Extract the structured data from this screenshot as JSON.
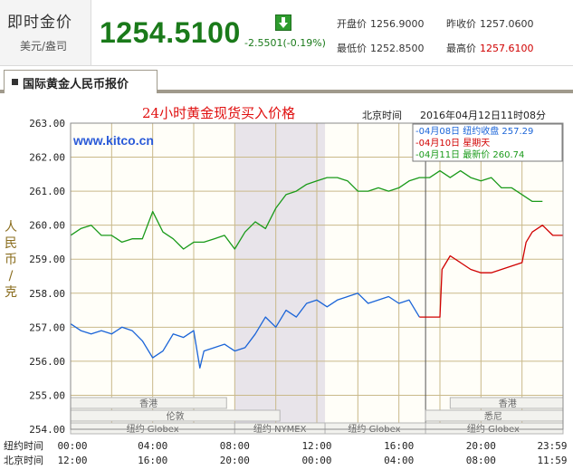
{
  "quote": {
    "label": "即时金价",
    "unit": "美元/盎司",
    "price": "1254.5100",
    "change": "-2.5501(-0.19%)",
    "open_label": "开盘价",
    "open_value": "1256.9000",
    "prev_close_label": "昨收价",
    "prev_close_value": "1257.0600",
    "low_label": "最低价",
    "low_value": "1252.8500",
    "high_label": "最高价",
    "high_value": "1257.6100",
    "change_color": "#1a7a1a",
    "high_color": "#d00000"
  },
  "section": {
    "tab_label": "国际黄金人民币报价"
  },
  "chart_data": {
    "type": "line",
    "title": "24小时黄金现货买入价格",
    "watermark": "www.kitco.cn",
    "timestamp_label": "北京时间",
    "timestamp": "2016年04月12日11时08分",
    "ylabel": [
      "人",
      "民",
      "币",
      "/",
      "克"
    ],
    "ylim": [
      254,
      263
    ],
    "yticks": [
      "263.00",
      "262.00",
      "261.00",
      "260.00",
      "259.00",
      "258.00",
      "257.00",
      "256.00",
      "255.00",
      "254.00"
    ],
    "xlim": [
      0,
      24
    ],
    "x_label_rows": [
      {
        "label": "纽约时间",
        "ticks": [
          "00:00",
          "04:00",
          "08:00",
          "12:00",
          "16:00",
          "20:00",
          "23:59"
        ]
      },
      {
        "label": "北京时间",
        "ticks": [
          "12:00",
          "16:00",
          "20:00",
          "00:00",
          "04:00",
          "08:00",
          "11:59"
        ]
      }
    ],
    "legend": [
      {
        "text": "-04月08日  纽约收盘 257.29",
        "color": "#1a64d8"
      },
      {
        "text": "-04月10日  星期天",
        "color": "#d00000"
      },
      {
        "text": "-04月11日  最新价 260.74",
        "color": "#1a9a1a"
      }
    ],
    "markets": [
      "香港",
      "伦敦",
      "纽约 Globex",
      "纽约 NYMEX",
      "纽约 Globex",
      "香港",
      "悉尼",
      "纽约 Globex"
    ],
    "series": [
      {
        "name": "04月08日",
        "color": "#1a64d8",
        "x": [
          0.0,
          0.5,
          1.0,
          1.5,
          2.0,
          2.5,
          3.0,
          3.5,
          4.0,
          4.5,
          5.0,
          5.5,
          6.0,
          6.3,
          6.5,
          7.0,
          7.5,
          8.0,
          8.5,
          9.0,
          9.5,
          10.0,
          10.5,
          11.0,
          11.5,
          12.0,
          12.5,
          13.0,
          13.5,
          14.0,
          14.5,
          15.0,
          15.5,
          16.0,
          16.5,
          17.0
        ],
        "y": [
          257.1,
          256.9,
          256.8,
          256.9,
          256.8,
          257.0,
          256.9,
          256.6,
          256.1,
          256.3,
          256.8,
          256.7,
          256.9,
          255.8,
          256.3,
          256.4,
          256.5,
          256.3,
          256.4,
          256.8,
          257.3,
          257.0,
          257.5,
          257.3,
          257.7,
          257.8,
          257.6,
          257.8,
          257.9,
          258.0,
          257.7,
          257.8,
          257.9,
          257.7,
          257.8,
          257.3
        ]
      },
      {
        "name": "04月10日",
        "color": "#d00000",
        "x": [
          17.0,
          18.0,
          18.1,
          18.5,
          19.0,
          19.5,
          20.0,
          20.5,
          21.0,
          21.5,
          22.0,
          22.2,
          22.5,
          23.0,
          23.5,
          24.0
        ],
        "y": [
          257.3,
          257.3,
          258.7,
          259.1,
          258.9,
          258.7,
          258.6,
          258.6,
          258.7,
          258.8,
          258.9,
          259.5,
          259.8,
          260.0,
          259.7,
          259.7
        ]
      },
      {
        "name": "04月11日",
        "color": "#1a9a1a",
        "x": [
          0.0,
          0.5,
          1.0,
          1.5,
          2.0,
          2.5,
          3.0,
          3.5,
          4.0,
          4.5,
          5.0,
          5.5,
          6.0,
          6.5,
          7.0,
          7.5,
          8.0,
          8.5,
          9.0,
          9.5,
          10.0,
          10.5,
          11.0,
          11.5,
          12.0,
          12.5,
          13.0,
          13.5,
          14.0,
          14.5,
          15.0,
          15.5,
          16.0,
          16.5,
          17.0,
          17.5,
          18.0,
          18.5,
          19.0,
          19.5,
          20.0,
          20.5,
          21.0,
          21.5,
          22.0,
          22.5,
          23.0
        ],
        "y": [
          259.7,
          259.9,
          260.0,
          259.7,
          259.7,
          259.5,
          259.6,
          259.6,
          260.4,
          259.8,
          259.6,
          259.3,
          259.5,
          259.5,
          259.6,
          259.7,
          259.3,
          259.8,
          260.1,
          259.9,
          260.5,
          260.9,
          261.0,
          261.2,
          261.3,
          261.4,
          261.4,
          261.3,
          261.0,
          261.0,
          261.1,
          261.0,
          261.1,
          261.3,
          261.4,
          261.4,
          261.6,
          261.4,
          261.6,
          261.4,
          261.3,
          261.4,
          261.1,
          261.1,
          260.9,
          260.7,
          260.7
        ]
      }
    ]
  }
}
